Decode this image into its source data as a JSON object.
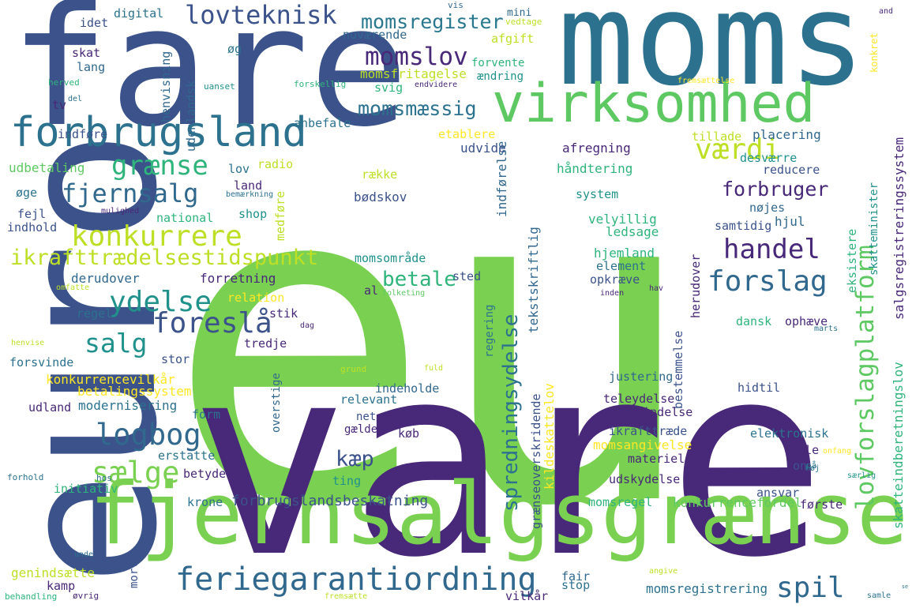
{
  "words": [
    {
      "text": "eu",
      "color": "#7ad151"
    },
    {
      "text": "vare",
      "color": "#482878"
    },
    {
      "text": "fare",
      "color": "#3b528b"
    },
    {
      "text": "moms",
      "color": "#2c728e"
    },
    {
      "text": "euro",
      "color": "#3b528b"
    },
    {
      "text": "fjernsalgsgrænse",
      "color": "#7ad151"
    },
    {
      "text": "virksomhed",
      "color": "#5ec962"
    },
    {
      "text": "forbrugsland",
      "color": "#2c728e"
    },
    {
      "text": "feriegarantiordning",
      "color": "#31688e"
    },
    {
      "text": "lovforslagplatform",
      "color": "#5ec962"
    },
    {
      "text": "ikrafttrædelsestidspunkt",
      "color": "#bddf26"
    },
    {
      "text": "lovteknisk",
      "color": "#3b528b"
    },
    {
      "text": "momsregister",
      "color": "#2a788e"
    },
    {
      "text": "momslov",
      "color": "#482878"
    },
    {
      "text": "fjernsalg",
      "color": "#31688e"
    },
    {
      "text": "konkurrere",
      "color": "#bddf26"
    },
    {
      "text": "grænse",
      "color": "#2fb47c"
    },
    {
      "text": "forslag",
      "color": "#31688e"
    },
    {
      "text": "handel",
      "color": "#482878"
    },
    {
      "text": "værdi",
      "color": "#bddf26"
    },
    {
      "text": "ydelse",
      "color": "#21918c"
    },
    {
      "text": "foreslå",
      "color": "#3b528b"
    },
    {
      "text": "salg",
      "color": "#21918c"
    },
    {
      "text": "logbog",
      "color": "#31688e"
    },
    {
      "text": "sælge",
      "color": "#7ad151"
    },
    {
      "text": "spil",
      "color": "#31688e"
    },
    {
      "text": "betale",
      "color": "#2fb47c"
    },
    {
      "text": "forbruger",
      "color": "#482878"
    },
    {
      "text": "momsmæssig",
      "color": "#2c728e"
    },
    {
      "text": "spredningsydelse",
      "color": "#2c728e"
    },
    {
      "text": "kæp",
      "color": "#3b528b"
    },
    {
      "text": "konkurrencevilkår",
      "color": "#fde725"
    },
    {
      "text": "forbrugslandsbeskatning",
      "color": "#3b528b"
    },
    {
      "text": "konkurrencefordel",
      "color": "#5ec962"
    },
    {
      "text": "momsregel",
      "color": "#2fb47c"
    },
    {
      "text": "momsregistrering",
      "color": "#2c728e"
    },
    {
      "text": "salgsregistreringssystem",
      "color": "#482878"
    },
    {
      "text": "skatteindberetningslov",
      "color": "#2fb47c"
    },
    {
      "text": "betalingssystem",
      "color": "#fde725"
    },
    {
      "text": "momsangivelse",
      "color": "#fde725"
    },
    {
      "text": "momsfritagelse",
      "color": "#bddf26"
    },
    {
      "text": "udbetaling",
      "color": "#5ec962"
    },
    {
      "text": "momsområde",
      "color": "#21918c"
    },
    {
      "text": "genindsætte",
      "color": "#bddf26"
    },
    {
      "text": "grænseoverskridende",
      "color": "#3b528b"
    },
    {
      "text": "kildeskattelov",
      "color": "#fde725"
    },
    {
      "text": "tekstskriftlig",
      "color": "#31688e"
    },
    {
      "text": "bestemmelse",
      "color": "#3b528b"
    },
    {
      "text": "skatteminister",
      "color": "#21918c"
    },
    {
      "text": "eksistere",
      "color": "#2fb47c"
    },
    {
      "text": "indførelse",
      "color": "#31688e"
    },
    {
      "text": "herudover",
      "color": "#482878"
    },
    {
      "text": "henvisning",
      "color": "#31688e"
    },
    {
      "text": "udenlandsk",
      "color": "#31688e"
    },
    {
      "text": "modernisering",
      "color": "#2c728e"
    },
    {
      "text": "forretning",
      "color": "#482878"
    },
    {
      "text": "derudover",
      "color": "#31688e"
    },
    {
      "text": "relation",
      "color": "#fde725"
    },
    {
      "text": "velyillig",
      "color": "#2fb47c"
    },
    {
      "text": "ledsage",
      "color": "#2fb47c"
    },
    {
      "text": "hjemland",
      "color": "#2fb47c"
    },
    {
      "text": "element",
      "color": "#2c728e"
    },
    {
      "text": "opkræve",
      "color": "#3b528b"
    },
    {
      "text": "håndtering",
      "color": "#2fb47c"
    },
    {
      "text": "afregning",
      "color": "#482878"
    },
    {
      "text": "udvide",
      "color": "#3b528b"
    },
    {
      "text": "etablere",
      "color": "#fde725"
    },
    {
      "text": "placering",
      "color": "#31688e"
    },
    {
      "text": "tillade",
      "color": "#bddf26"
    },
    {
      "text": "desværre",
      "color": "#21918c"
    },
    {
      "text": "reducere",
      "color": "#3b528b"
    },
    {
      "text": "nøjes",
      "color": "#31688e"
    },
    {
      "text": "hjul",
      "color": "#31688e"
    },
    {
      "text": "samtidig",
      "color": "#3b528b"
    },
    {
      "text": "system",
      "color": "#21918c"
    },
    {
      "text": "bødskov",
      "color": "#3b528b"
    },
    {
      "text": "række",
      "color": "#bddf26"
    },
    {
      "text": "nuværende",
      "color": "#31688e"
    },
    {
      "text": "afgift",
      "color": "#bddf26"
    },
    {
      "text": "forvente",
      "color": "#2fb47c"
    },
    {
      "text": "ændring",
      "color": "#21918c"
    },
    {
      "text": "svig",
      "color": "#2fb47c"
    },
    {
      "text": "endvidere",
      "color": "#482878"
    },
    {
      "text": "digital",
      "color": "#2c728e"
    },
    {
      "text": "idet",
      "color": "#3b528b"
    },
    {
      "text": "skat",
      "color": "#482878"
    },
    {
      "text": "lang",
      "color": "#31688e"
    },
    {
      "text": "mini",
      "color": "#31688e"
    },
    {
      "text": "vis",
      "color": "#31688e"
    },
    {
      "text": "vedtage",
      "color": "#bddf26"
    },
    {
      "text": "øg",
      "color": "#2c728e"
    },
    {
      "text": "herved",
      "color": "#2fb47c"
    },
    {
      "text": "del",
      "color": "#2c728e"
    },
    {
      "text": "uanset",
      "color": "#21918c"
    },
    {
      "text": "forskellig",
      "color": "#2fb47c"
    },
    {
      "text": "tv",
      "color": "#482878"
    },
    {
      "text": "anbefale",
      "color": "#2c728e"
    },
    {
      "text": "indføre",
      "color": "#3b528b"
    },
    {
      "text": "lov",
      "color": "#2c728e"
    },
    {
      "text": "radio",
      "color": "#bddf26"
    },
    {
      "text": "land",
      "color": "#482878"
    },
    {
      "text": "øge",
      "color": "#2c728e"
    },
    {
      "text": "bemærkning",
      "color": "#2c728e"
    },
    {
      "text": "medføre",
      "color": "#bddf26"
    },
    {
      "text": "fejl",
      "color": "#3b528b"
    },
    {
      "text": "mulighed",
      "color": "#482878"
    },
    {
      "text": "national",
      "color": "#2fb47c"
    },
    {
      "text": "shop",
      "color": "#21918c"
    },
    {
      "text": "indhold",
      "color": "#3b528b"
    },
    {
      "text": "sted",
      "color": "#3b528b"
    },
    {
      "text": "al",
      "color": "#482878"
    },
    {
      "text": "folketing",
      "color": "#5ec962"
    },
    {
      "text": "regering",
      "color": "#2c728e"
    },
    {
      "text": "inden",
      "color": "#482878"
    },
    {
      "text": "hav",
      "color": "#482878"
    },
    {
      "text": "omfatte",
      "color": "#bddf26"
    },
    {
      "text": "regel",
      "color": "#2c728e"
    },
    {
      "text": "stik",
      "color": "#482878"
    },
    {
      "text": "dag",
      "color": "#482878"
    },
    {
      "text": "tredje",
      "color": "#482878"
    },
    {
      "text": "henvise",
      "color": "#bddf26"
    },
    {
      "text": "stor",
      "color": "#3b528b"
    },
    {
      "text": "forsvinde",
      "color": "#2c728e"
    },
    {
      "text": "dansk",
      "color": "#2fb47c"
    },
    {
      "text": "ophæve",
      "color": "#482878"
    },
    {
      "text": "marts",
      "color": "#2c728e"
    },
    {
      "text": "justering",
      "color": "#31688e"
    },
    {
      "text": "hidtil",
      "color": "#3b528b"
    },
    {
      "text": "grund",
      "color": "#bddf26"
    },
    {
      "text": "fuld",
      "color": "#bddf26"
    },
    {
      "text": "indeholde",
      "color": "#31688e"
    },
    {
      "text": "relevant",
      "color": "#2c728e"
    },
    {
      "text": "overstige",
      "color": "#31688e"
    },
    {
      "text": "net",
      "color": "#3b528b"
    },
    {
      "text": "gælde",
      "color": "#482878"
    },
    {
      "text": "udland",
      "color": "#482878"
    },
    {
      "text": "teleydelse",
      "color": "#482878"
    },
    {
      "text": "forbindelse",
      "color": "#482878"
    },
    {
      "text": "ikrafttræde",
      "color": "#3b528b"
    },
    {
      "text": "elektronisk",
      "color": "#2c728e"
    },
    {
      "text": "form",
      "color": "#2c728e"
    },
    {
      "text": "erstatte",
      "color": "#2c728e"
    },
    {
      "text": "betyde",
      "color": "#482878"
    },
    {
      "text": "køb",
      "color": "#482878"
    },
    {
      "text": "ting",
      "color": "#21918c"
    },
    {
      "text": "materiel",
      "color": "#482878"
    },
    {
      "text": "fælle",
      "color": "#482878"
    },
    {
      "text": "onfang",
      "color": "#fde725"
    },
    {
      "text": "hos",
      "color": "#2c728e"
    },
    {
      "text": "forhold",
      "color": "#2c728e"
    },
    {
      "text": "høj",
      "color": "#2c728e"
    },
    {
      "text": "på",
      "color": "#2c728e"
    },
    {
      "text": "særlig",
      "color": "#21918c"
    },
    {
      "text": "on",
      "color": "#3b528b"
    },
    {
      "text": "ansvar",
      "color": "#3b528b"
    },
    {
      "text": "initiativ",
      "color": "#2fb47c"
    },
    {
      "text": "krone",
      "color": "#2c728e"
    },
    {
      "text": "udskydelse",
      "color": "#482878"
    },
    {
      "text": "første",
      "color": "#482878"
    },
    {
      "text": "unde",
      "color": "#2c728e"
    },
    {
      "text": "morten",
      "color": "#3b528b"
    },
    {
      "text": "angive",
      "color": "#bddf26"
    },
    {
      "text": "kamp",
      "color": "#482878"
    },
    {
      "text": "fair",
      "color": "#31688e"
    },
    {
      "text": "stop",
      "color": "#2c728e"
    },
    {
      "text": "vilkår",
      "color": "#482878"
    },
    {
      "text": "samle",
      "color": "#2c728e"
    },
    {
      "text": "se",
      "color": "#2c728e"
    },
    {
      "text": "behandling",
      "color": "#2fb47c"
    },
    {
      "text": "øvrig",
      "color": "#482878"
    },
    {
      "text": "fremsætte",
      "color": "#bddf26"
    },
    {
      "text": "fremsættelse",
      "color": "#fde725"
    },
    {
      "text": "konkret",
      "color": "#fde725"
    },
    {
      "text": "and",
      "color": "#482878"
    }
  ]
}
